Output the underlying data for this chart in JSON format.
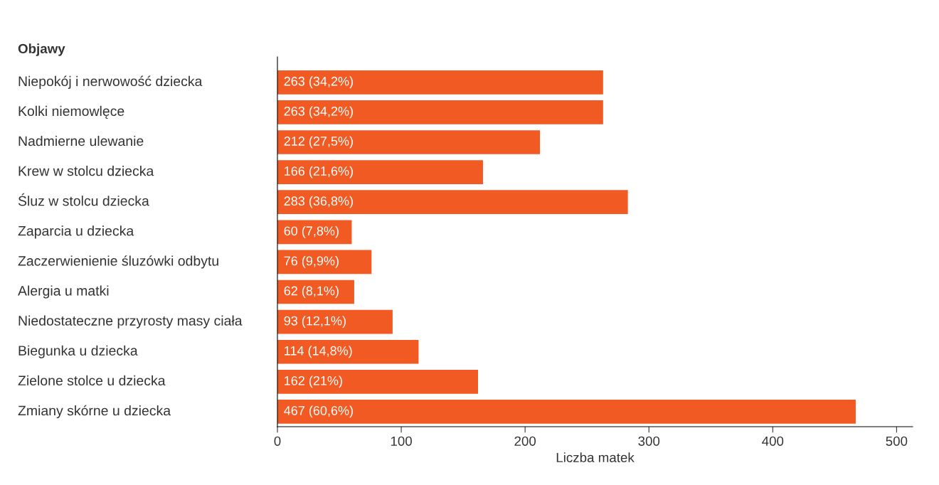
{
  "chart_data": {
    "type": "bar",
    "orientation": "horizontal",
    "ylabel": "Objawy",
    "xlabel": "Liczba matek",
    "categories": [
      "Niepokój i nerwowość dziecka",
      "Kolki niemowlęce",
      "Nadmierne ulewanie",
      "Krew w stolcu dziecka",
      "Śluz w stolcu dziecka",
      "Zaparcia u dziecka",
      "Zaczerwienienie śluzówki odbytu",
      "Alergia u matki",
      "Niedostateczne przyrosty masy ciała",
      "Biegunka u dziecka",
      "Zielone stolce u dziecka",
      "Zmiany skórne u dziecka"
    ],
    "values": [
      263,
      263,
      212,
      166,
      283,
      60,
      76,
      62,
      93,
      114,
      162,
      467
    ],
    "value_labels": [
      "263 (34,2%)",
      "263 (34,2%)",
      "212 (27,5%)",
      "166 (21,6%)",
      "283 (36,8%)",
      "60 (7,8%)",
      "76 (9,9%)",
      "62 (8,1%)",
      "93 (12,1%)",
      "114 (14,8%)",
      "162 (21%)",
      "467 (60,6%)"
    ],
    "color": "#f15a22",
    "xlim": [
      0,
      513
    ],
    "xticks": [
      0,
      100,
      200,
      300,
      400,
      500
    ],
    "grid": false
  }
}
